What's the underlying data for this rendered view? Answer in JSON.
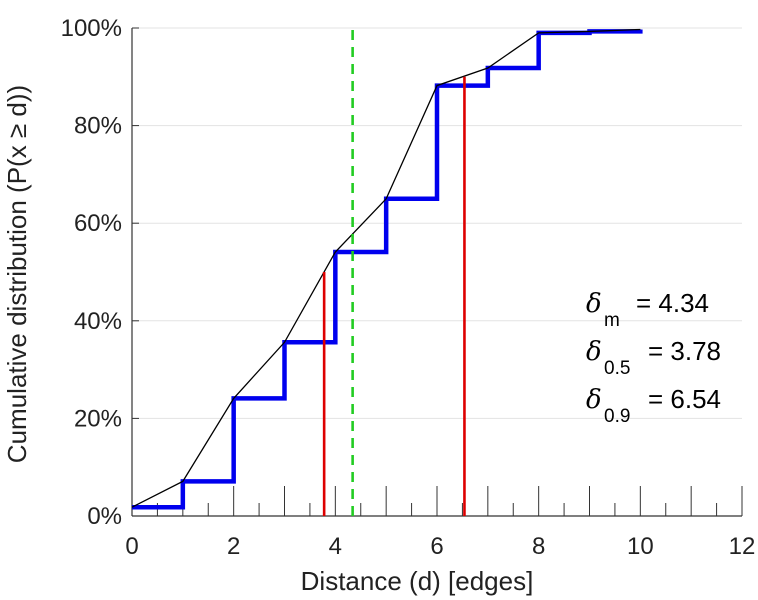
{
  "chart_data": {
    "type": "line",
    "xlabel": "Distance (d) [edges]",
    "ylabel": "Cumulative distribution (P(x ≥ d))",
    "xlim": [
      0,
      12
    ],
    "ylim": [
      0,
      100
    ],
    "x_ticks": [
      "0",
      "2",
      "4",
      "6",
      "8",
      "10",
      "12"
    ],
    "y_ticks": [
      "0%",
      "20%",
      "40%",
      "60%",
      "80%",
      "100%"
    ],
    "grid": "horizontal",
    "series": [
      {
        "style": "step",
        "color": "#0000ee",
        "x": [
          0,
          1,
          2,
          3,
          4,
          5,
          6,
          7,
          8,
          9,
          10
        ],
        "y": [
          1.8,
          7.1,
          24.1,
          35.6,
          54.1,
          65.0,
          88.2,
          91.8,
          99.0,
          99.3,
          99.7
        ]
      },
      {
        "style": "line",
        "color": "#000000",
        "x": [
          0,
          1,
          2,
          3,
          4,
          5,
          6,
          7,
          8,
          9,
          10
        ],
        "y": [
          1.8,
          7.1,
          24.1,
          35.6,
          54.1,
          65.0,
          88.2,
          91.8,
          99.0,
          99.3,
          99.7
        ]
      }
    ],
    "vertical_lines": [
      {
        "x": 3.78,
        "color": "#dd0000",
        "style": "solid",
        "ystop": 50
      },
      {
        "x": 6.54,
        "color": "#dd0000",
        "style": "solid",
        "ystop": 90
      },
      {
        "x": 4.34,
        "color": "#22cc22",
        "style": "dashed",
        "ystop": 100
      }
    ],
    "annotations": [
      {
        "symbol": "δ",
        "sub": "m",
        "text": "= 4.34"
      },
      {
        "symbol": "δ",
        "sub": "0.5",
        "text": "= 3.78"
      },
      {
        "symbol": "δ",
        "sub": "0.9",
        "text": "= 6.54"
      }
    ]
  }
}
